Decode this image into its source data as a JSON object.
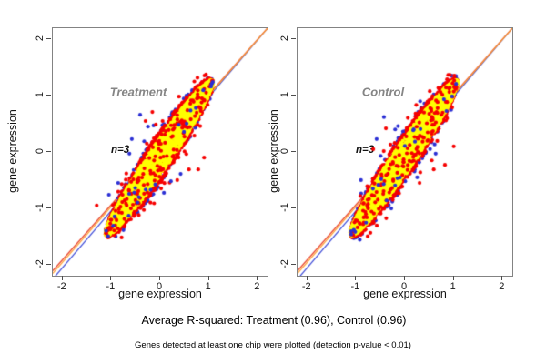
{
  "figure": {
    "background": "#ffffff",
    "captions": {
      "r_squared": "Average R-squared: Treatment (0.96), Control (0.96)",
      "footnote": "Genes detected at least one chip were plotted (detection p-value < 0.01)"
    }
  },
  "chart_data": {
    "type": "scatter",
    "layout": "1x2 panels",
    "axis": {
      "xlabel": "gene expression",
      "ylabel": "gene expression",
      "xlim": [
        -2.2,
        2.2
      ],
      "ylim": [
        -2.2,
        2.2
      ],
      "ticks": [
        -2,
        -1,
        0,
        1,
        2
      ],
      "frame_color": "#838383",
      "tick_color": "#4d4d4d",
      "tick_label_color": "#161616"
    },
    "series_colors": {
      "blue": "#2b2fd4",
      "red": "#f60000",
      "yellow": "#ffff00"
    },
    "ref_lines": [
      {
        "color": "#3b48d6",
        "slope": 1.013,
        "intercept": -0.03
      },
      {
        "color": "#e8432c",
        "slope": 0.98,
        "intercept": 0.045
      },
      {
        "color": "#ff9d2e",
        "slope": 0.99,
        "intercept": 0.02
      }
    ],
    "cloud_model": {
      "comment": "lens-shaped cloud along y≈x; bands drawn in order, later covers earlier",
      "axis_slope": 1.22,
      "axis_intercept": -0.08,
      "t_center": -0.02,
      "t_halfspan": 1.1,
      "point_radius": 2.1,
      "bands": [
        {
          "color": "blue",
          "halfwidth": 0.5,
          "count": 360
        },
        {
          "color": "blue",
          "halfwidth": 0.75,
          "count": 30
        },
        {
          "color": "red",
          "halfwidth": 0.46,
          "count": 1500
        },
        {
          "color": "red",
          "halfwidth": 0.72,
          "count": 90
        },
        {
          "color": "yellow",
          "halfwidth": 0.34,
          "count": 2400
        }
      ],
      "accents": [
        {
          "color": "red",
          "halfwidth": 0.36,
          "count": 140
        },
        {
          "color": "blue",
          "halfwidth": 0.38,
          "count": 22
        }
      ]
    },
    "plots": [
      {
        "label": "Treatment",
        "n_label": "n=3",
        "r_squared": 0.96,
        "seed": 1013,
        "outliers": {
          "blue": [
            [
              -0.41,
              0.66
            ],
            [
              -0.58,
              0.23
            ],
            [
              -0.63,
              -0.03
            ],
            [
              -0.86,
              -0.55
            ],
            [
              -1.05,
              -0.76
            ],
            [
              0.42,
              -0.39
            ],
            [
              0.22,
              -0.52
            ],
            [
              -0.25,
              0.45
            ]
          ],
          "red": [
            [
              -0.16,
              0.71
            ],
            [
              -0.3,
              0.55
            ],
            [
              0.59,
              -0.31
            ],
            [
              0.78,
              -0.31
            ],
            [
              0.35,
              -0.5
            ],
            [
              0.9,
              -0.1
            ],
            [
              -0.2,
              -0.9
            ],
            [
              0.05,
              0.55
            ],
            [
              -1.3,
              -0.95
            ]
          ]
        }
      },
      {
        "label": "Control",
        "n_label": "n=3",
        "r_squared": 0.96,
        "seed": 2027,
        "outliers": {
          "blue": [
            [
              -0.43,
              0.62
            ],
            [
              -0.58,
              0.23
            ],
            [
              0.63,
              -0.03
            ],
            [
              -0.9,
              -0.5
            ],
            [
              0.25,
              -0.45
            ],
            [
              -0.2,
              0.4
            ]
          ],
          "red": [
            [
              -0.39,
              0.42
            ],
            [
              -0.65,
              0.05
            ],
            [
              0.82,
              -0.23
            ],
            [
              0.59,
              -0.31
            ],
            [
              0.3,
              -0.55
            ],
            [
              1.0,
              0.1
            ],
            [
              -0.25,
              -0.85
            ],
            [
              0.55,
              -0.15
            ]
          ]
        }
      }
    ]
  }
}
